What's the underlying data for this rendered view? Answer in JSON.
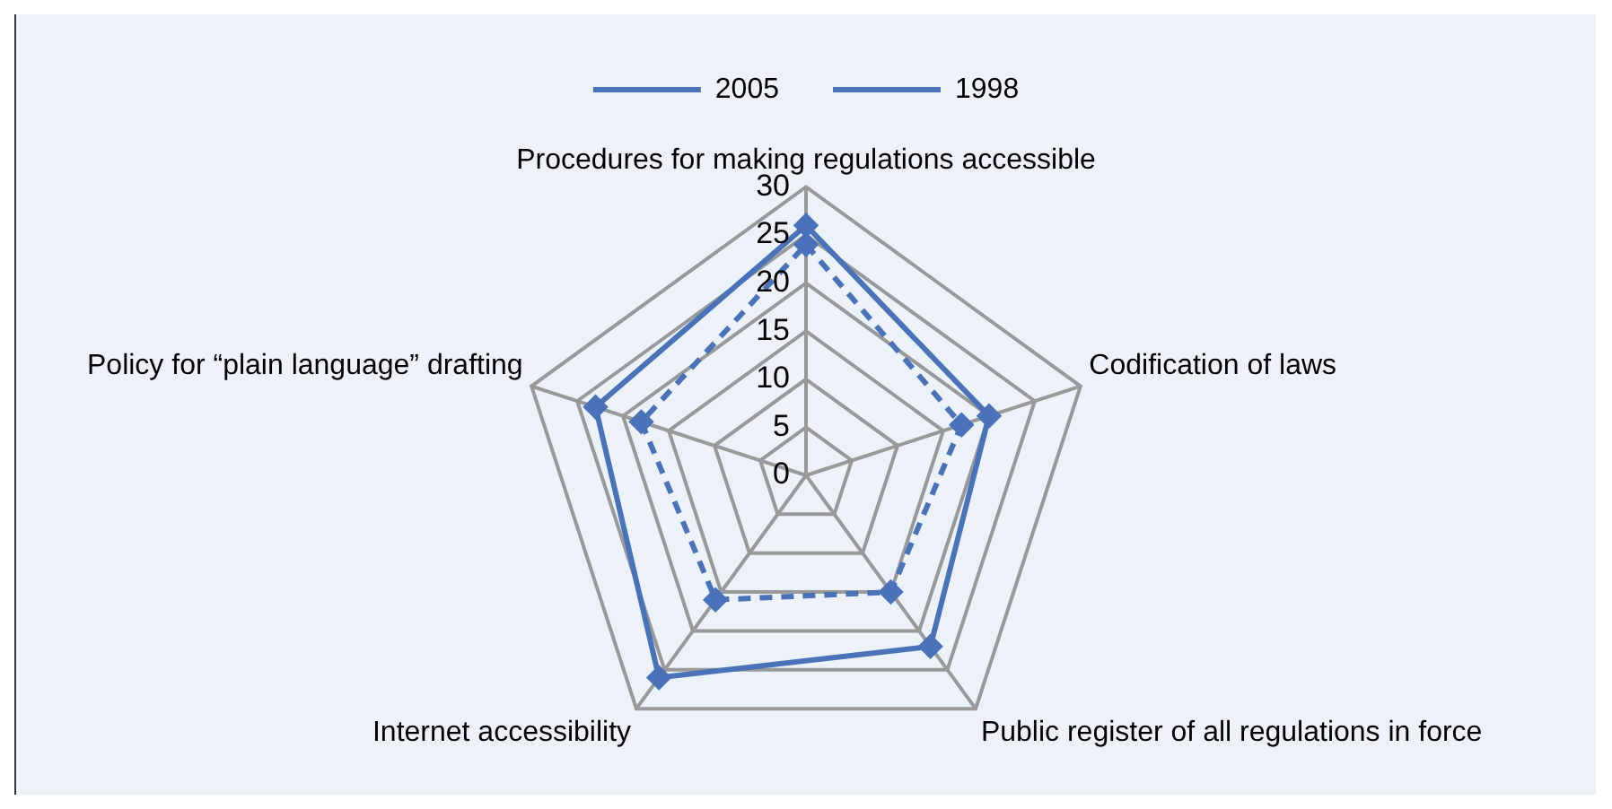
{
  "chart_data": {
    "type": "radar",
    "categories": [
      "Procedures for making regulations accessible",
      "Codification of laws",
      "Public register of all regulations in force",
      "Internet accessibility",
      "Policy for “plain language” drafting"
    ],
    "series": [
      {
        "name": "2005",
        "color": "#4a72b8",
        "values": [
          26,
          20,
          22,
          26,
          23
        ],
        "line_style": "solid"
      },
      {
        "name": "1998",
        "color": "#4a72b8",
        "values": [
          24,
          17,
          15,
          16,
          18
        ],
        "line_style": "dashed"
      }
    ],
    "ylim": [
      0,
      30
    ],
    "yticks": [
      0,
      5,
      10,
      15,
      20,
      25,
      30
    ],
    "grid": true,
    "legend": "top",
    "marker": "diamond"
  }
}
